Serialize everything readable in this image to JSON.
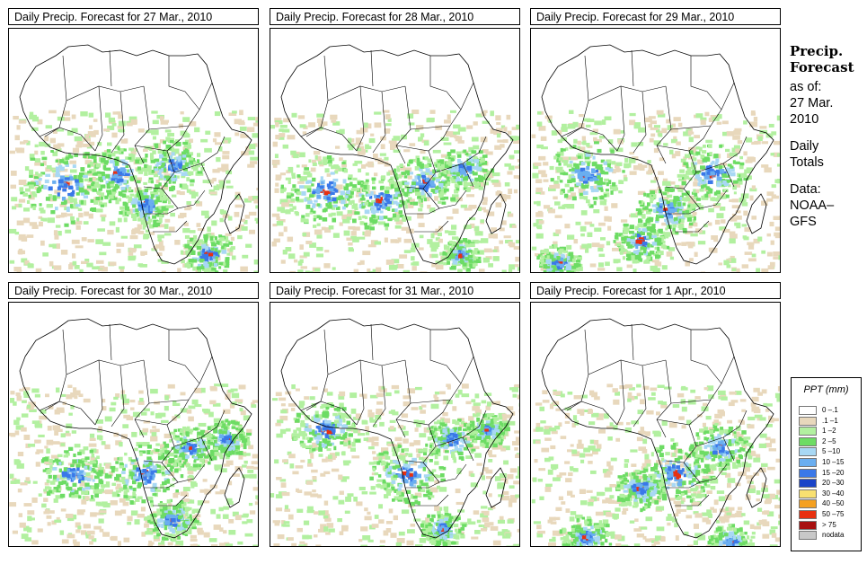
{
  "panels": [
    {
      "title": "Daily Precip. Forecast for  27 Mar., 2010"
    },
    {
      "title": "Daily Precip. Forecast for  28 Mar., 2010"
    },
    {
      "title": "Daily Precip. Forecast for  29 Mar., 2010"
    },
    {
      "title": "Daily Precip. Forecast for  30 Mar., 2010"
    },
    {
      "title": "Daily Precip. Forecast for  31 Mar., 2010"
    },
    {
      "title": "Daily Precip. Forecast for  1 Apr., 2010"
    }
  ],
  "sidebar": {
    "heading_line1": "Precip.",
    "heading_line2": "Forecast",
    "asof_line1": "as of:",
    "asof_line2": "27 Mar.",
    "asof_line3": "2010",
    "totals_line1": "Daily",
    "totals_line2": "Totals",
    "data_line1": "Data:",
    "data_line2": "NOAA–",
    "data_line3": "GFS"
  },
  "legend": {
    "title": "PPT (mm)",
    "items": [
      {
        "label": "0 –.1",
        "color": "#ffffff"
      },
      {
        "label": ".1 –1",
        "color": "#e8d8bc"
      },
      {
        "label": "1 –2",
        "color": "#b2f0a0"
      },
      {
        "label": "2 –5",
        "color": "#6ddc64"
      },
      {
        "label": "5 –10",
        "color": "#a8d8f4"
      },
      {
        "label": "10 –15",
        "color": "#6aaef0"
      },
      {
        "label": "15 –20",
        "color": "#3a78e8"
      },
      {
        "label": "20 –30",
        "color": "#1a44c8"
      },
      {
        "label": "30 –40",
        "color": "#f8e070"
      },
      {
        "label": "40 –50",
        "color": "#f4a020"
      },
      {
        "label": "50 –75",
        "color": "#e83010"
      },
      {
        "label": "> 75",
        "color": "#a81010"
      },
      {
        "label": "nodata",
        "color": "#c8c8c8"
      }
    ]
  }
}
